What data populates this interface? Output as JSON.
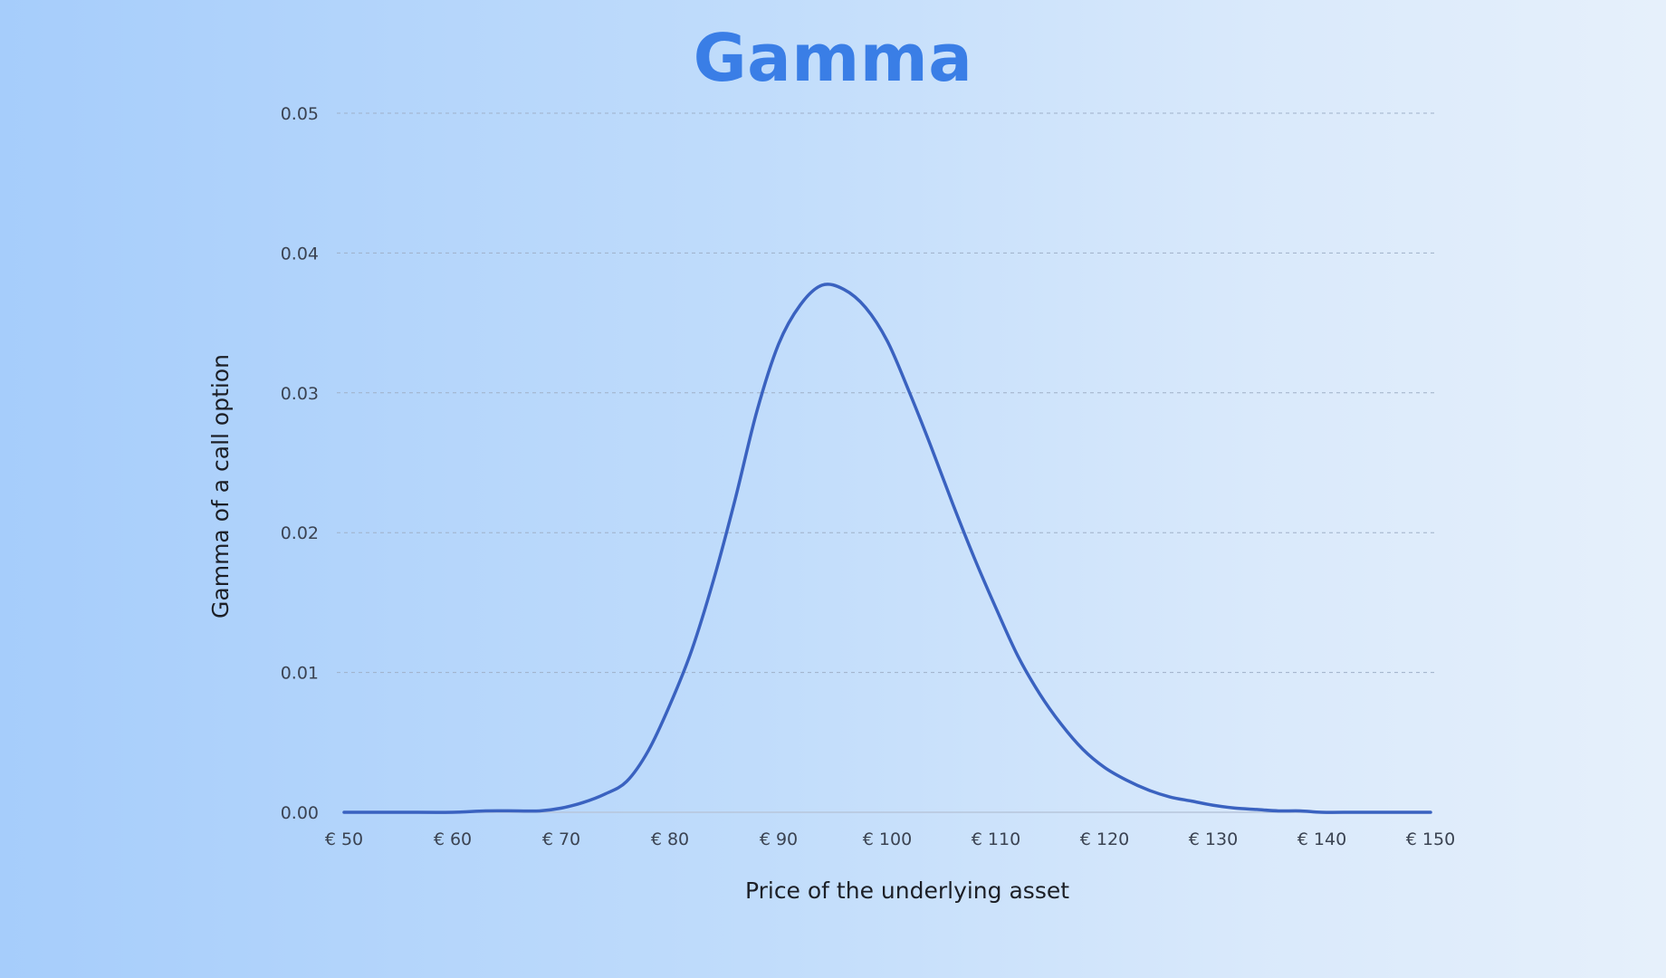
{
  "chart_data": {
    "type": "line",
    "title": "Gamma",
    "xlabel": "Price of the underlying asset",
    "ylabel": "Gamma of a call option",
    "xlim": [
      50,
      150
    ],
    "ylim": [
      0,
      0.05
    ],
    "x_tick_labels": [
      "€ 50",
      "€ 60",
      "€ 70",
      "€ 80",
      "€ 90",
      "€ 100",
      "€ 110",
      "€ 120",
      "€ 130",
      "€ 140",
      "€ 150"
    ],
    "x_ticks": [
      50,
      60,
      70,
      80,
      90,
      100,
      110,
      120,
      130,
      140,
      150
    ],
    "y_tick_labels": [
      "0.00",
      "0.01",
      "0.02",
      "0.03",
      "0.04",
      "0.05"
    ],
    "y_ticks": [
      0,
      0.01,
      0.02,
      0.03,
      0.04,
      0.05
    ],
    "grid": "horizontal-dashed",
    "line_color": "#3a62c0",
    "series": [
      {
        "x": [
          50,
          55,
          60,
          63,
          66,
          68,
          70,
          72,
          74,
          76,
          78,
          80,
          82,
          84,
          86,
          88,
          90,
          92,
          94,
          96,
          98,
          100,
          102,
          104,
          106,
          108,
          110,
          112,
          114,
          116,
          118,
          120,
          122,
          124,
          126,
          128,
          130,
          132,
          134,
          136,
          138,
          140,
          143,
          146,
          150
        ],
        "values": [
          0,
          0,
          0,
          0.0001,
          0.0001,
          0.0001,
          0.0003,
          0.0007,
          0.0013,
          0.0022,
          0.0044,
          0.0077,
          0.0116,
          0.0166,
          0.0224,
          0.0287,
          0.0335,
          0.0363,
          0.0377,
          0.0374,
          0.0361,
          0.0337,
          0.0301,
          0.0262,
          0.0221,
          0.0182,
          0.0146,
          0.0112,
          0.0085,
          0.0063,
          0.0045,
          0.0032,
          0.0023,
          0.0016,
          0.0011,
          0.0008,
          0.0005,
          0.0003,
          0.0002,
          0.0001,
          0.0001,
          0,
          0,
          0,
          0
        ]
      }
    ]
  }
}
